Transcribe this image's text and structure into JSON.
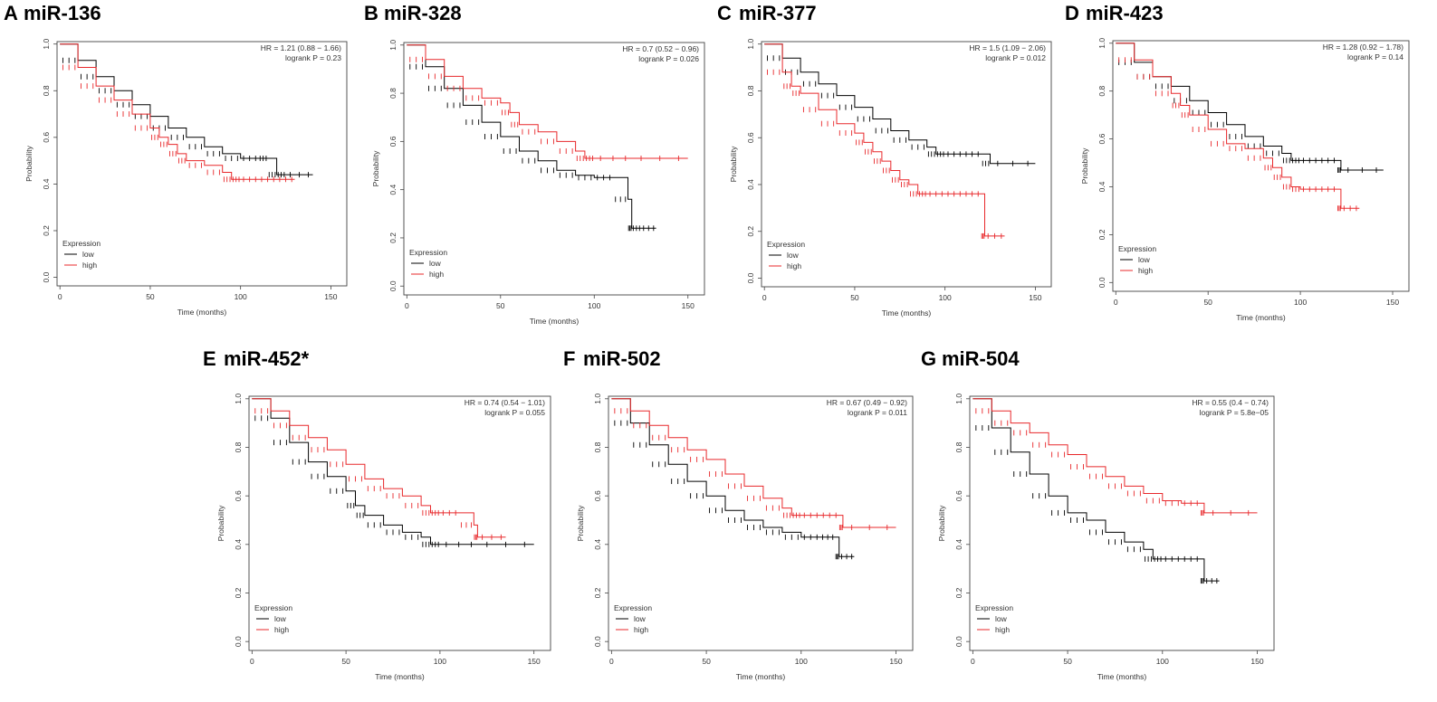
{
  "figure": {
    "chart_data": [
      {
        "type": "line",
        "panel_letter": "A",
        "title": "miR-136",
        "xlabel": "Time (months)",
        "ylabel": "Probability",
        "xlim": [
          0,
          150
        ],
        "ylim": [
          0,
          1
        ],
        "x_ticks": [
          "0",
          "50",
          "100",
          "150"
        ],
        "y_ticks": [
          "0.0",
          "0.2",
          "0.4",
          "0.6",
          "0.8",
          "1.0"
        ],
        "hr_text": "HR = 1.21 (0.88 − 1.66)",
        "logrank_text": "logrank P = 0.23",
        "legend_title": "Expression",
        "legend": [
          "low",
          "high"
        ],
        "series": [
          {
            "name": "low",
            "color": "#000000",
            "x": [
              0,
              10,
              20,
              30,
              40,
              50,
              60,
              70,
              80,
              90,
              100,
              110,
              115,
              120,
              125,
              140
            ],
            "y": [
              1.0,
              0.93,
              0.86,
              0.8,
              0.74,
              0.69,
              0.64,
              0.6,
              0.56,
              0.53,
              0.51,
              0.51,
              0.51,
              0.44,
              0.44,
              0.44
            ]
          },
          {
            "name": "high",
            "color": "#e8282b",
            "x": [
              0,
              10,
              20,
              30,
              40,
              50,
              55,
              60,
              65,
              70,
              80,
              90,
              95,
              100,
              110,
              120,
              130
            ],
            "y": [
              1.0,
              0.9,
              0.82,
              0.76,
              0.7,
              0.64,
              0.6,
              0.57,
              0.53,
              0.5,
              0.48,
              0.45,
              0.42,
              0.42,
              0.42,
              0.42,
              0.42
            ]
          }
        ]
      },
      {
        "type": "line",
        "panel_letter": "B",
        "title": "miR-328",
        "xlabel": "Time (months)",
        "ylabel": "Probability",
        "xlim": [
          0,
          150
        ],
        "ylim": [
          0,
          1
        ],
        "x_ticks": [
          "0",
          "50",
          "100",
          "150"
        ],
        "y_ticks": [
          "0.0",
          "0.2",
          "0.4",
          "0.6",
          "0.8",
          "1.0"
        ],
        "hr_text": "HR = 0.7 (0.52 − 0.96)",
        "logrank_text": "logrank P = 0.026",
        "legend_title": "Expression",
        "legend": [
          "low",
          "high"
        ],
        "series": [
          {
            "name": "low",
            "color": "#000000",
            "x": [
              0,
              10,
              20,
              30,
              40,
              50,
              60,
              70,
              80,
              90,
              100,
              110,
              118,
              120,
              125,
              133
            ],
            "y": [
              1.0,
              0.91,
              0.82,
              0.75,
              0.68,
              0.62,
              0.56,
              0.52,
              0.48,
              0.46,
              0.45,
              0.45,
              0.36,
              0.24,
              0.24,
              0.24
            ]
          },
          {
            "name": "high",
            "color": "#e8282b",
            "x": [
              0,
              10,
              20,
              30,
              40,
              50,
              55,
              60,
              70,
              80,
              90,
              95,
              100,
              120,
              150
            ],
            "y": [
              1.0,
              0.94,
              0.87,
              0.82,
              0.78,
              0.76,
              0.72,
              0.67,
              0.64,
              0.6,
              0.56,
              0.53,
              0.53,
              0.53,
              0.53
            ]
          }
        ]
      },
      {
        "type": "line",
        "panel_letter": "C",
        "title": "miR-377",
        "xlabel": "Time (months)",
        "ylabel": "Probability",
        "xlim": [
          0,
          150
        ],
        "ylim": [
          0,
          1
        ],
        "x_ticks": [
          "0",
          "50",
          "100",
          "150"
        ],
        "y_ticks": [
          "0.0",
          "0.2",
          "0.4",
          "0.6",
          "0.8",
          "1.0"
        ],
        "hr_text": "HR = 1.5 (1.09 − 2.06)",
        "logrank_text": "logrank P = 0.012",
        "legend_title": "Expression",
        "legend": [
          "low",
          "high"
        ],
        "series": [
          {
            "name": "low",
            "color": "#000000",
            "x": [
              0,
              10,
              20,
              30,
              40,
              50,
              60,
              70,
              80,
              90,
              95,
              100,
              110,
              120,
              125,
              150
            ],
            "y": [
              1.0,
              0.94,
              0.88,
              0.83,
              0.78,
              0.73,
              0.68,
              0.63,
              0.59,
              0.56,
              0.53,
              0.53,
              0.53,
              0.53,
              0.49,
              0.49
            ]
          },
          {
            "name": "high",
            "color": "#e8282b",
            "x": [
              0,
              10,
              15,
              20,
              30,
              40,
              50,
              55,
              60,
              65,
              70,
              75,
              80,
              85,
              90,
              100,
              110,
              120,
              122,
              133
            ],
            "y": [
              1.0,
              0.88,
              0.82,
              0.79,
              0.72,
              0.66,
              0.62,
              0.58,
              0.54,
              0.5,
              0.46,
              0.42,
              0.4,
              0.36,
              0.36,
              0.36,
              0.36,
              0.36,
              0.18,
              0.18
            ]
          }
        ]
      },
      {
        "type": "line",
        "panel_letter": "D",
        "title": "miR-423",
        "xlabel": "Time (months)",
        "ylabel": "Probability",
        "xlim": [
          0,
          150
        ],
        "ylim": [
          0,
          1
        ],
        "x_ticks": [
          "0",
          "50",
          "100",
          "150"
        ],
        "y_ticks": [
          "0.0",
          "0.2",
          "0.4",
          "0.6",
          "0.8",
          "1.0"
        ],
        "hr_text": "HR = 1.28 (0.92 − 1.78)",
        "logrank_text": "logrank P = 0.14",
        "legend_title": "Expression",
        "legend": [
          "low",
          "high"
        ],
        "series": [
          {
            "name": "low",
            "color": "#000000",
            "x": [
              0,
              10,
              20,
              30,
              40,
              50,
              60,
              70,
              80,
              90,
              95,
              100,
              110,
              120,
              122,
              145
            ],
            "y": [
              1.0,
              0.92,
              0.86,
              0.82,
              0.76,
              0.71,
              0.66,
              0.61,
              0.57,
              0.54,
              0.51,
              0.51,
              0.51,
              0.51,
              0.47,
              0.47
            ]
          },
          {
            "name": "high",
            "color": "#e8282b",
            "x": [
              0,
              10,
              20,
              30,
              35,
              40,
              50,
              60,
              70,
              80,
              85,
              90,
              95,
              100,
              110,
              120,
              122,
              132
            ],
            "y": [
              1.0,
              0.93,
              0.86,
              0.79,
              0.74,
              0.7,
              0.64,
              0.58,
              0.56,
              0.52,
              0.48,
              0.44,
              0.4,
              0.39,
              0.39,
              0.39,
              0.31,
              0.31
            ]
          }
        ]
      },
      {
        "type": "line",
        "panel_letter": "E",
        "title": "miR-452*",
        "xlabel": "Time (months)",
        "ylabel": "Probability",
        "xlim": [
          0,
          150
        ],
        "ylim": [
          0,
          1
        ],
        "x_ticks": [
          "0",
          "50",
          "100",
          "150"
        ],
        "y_ticks": [
          "0.0",
          "0.2",
          "0.4",
          "0.6",
          "0.8",
          "1.0"
        ],
        "hr_text": "HR = 0.74 (0.54 − 1.01)",
        "logrank_text": "logrank P = 0.055",
        "legend_title": "Expression",
        "legend": [
          "low",
          "high"
        ],
        "series": [
          {
            "name": "low",
            "color": "#000000",
            "x": [
              0,
              10,
              20,
              30,
              40,
              50,
              55,
              60,
              70,
              80,
              90,
              95,
              100,
              120,
              150
            ],
            "y": [
              1.0,
              0.92,
              0.82,
              0.74,
              0.68,
              0.62,
              0.56,
              0.52,
              0.48,
              0.45,
              0.43,
              0.4,
              0.4,
              0.4,
              0.4
            ]
          },
          {
            "name": "high",
            "color": "#e8282b",
            "x": [
              0,
              10,
              20,
              30,
              40,
              50,
              60,
              70,
              80,
              90,
              95,
              100,
              110,
              118,
              120,
              135
            ],
            "y": [
              1.0,
              0.95,
              0.89,
              0.84,
              0.79,
              0.73,
              0.67,
              0.63,
              0.6,
              0.56,
              0.53,
              0.53,
              0.53,
              0.48,
              0.43,
              0.43
            ]
          }
        ]
      },
      {
        "type": "line",
        "panel_letter": "F",
        "title": "miR-502",
        "xlabel": "Time (months)",
        "ylabel": "Probability",
        "xlim": [
          0,
          150
        ],
        "ylim": [
          0,
          1
        ],
        "x_ticks": [
          "0",
          "50",
          "100",
          "150"
        ],
        "y_ticks": [
          "0.0",
          "0.2",
          "0.4",
          "0.6",
          "0.8",
          "1.0"
        ],
        "hr_text": "HR = 0.67 (0.49 − 0.92)",
        "logrank_text": "logrank P = 0.011",
        "legend_title": "Expression",
        "legend": [
          "low",
          "high"
        ],
        "series": [
          {
            "name": "low",
            "color": "#000000",
            "x": [
              0,
              10,
              20,
              30,
              40,
              50,
              60,
              70,
              80,
              90,
              100,
              110,
              118,
              120,
              128
            ],
            "y": [
              1.0,
              0.9,
              0.81,
              0.73,
              0.66,
              0.6,
              0.54,
              0.5,
              0.47,
              0.45,
              0.43,
              0.43,
              0.43,
              0.35,
              0.35
            ]
          },
          {
            "name": "high",
            "color": "#e8282b",
            "x": [
              0,
              10,
              20,
              30,
              40,
              50,
              60,
              70,
              80,
              90,
              95,
              100,
              110,
              120,
              122,
              150
            ],
            "y": [
              1.0,
              0.95,
              0.89,
              0.84,
              0.79,
              0.75,
              0.69,
              0.64,
              0.59,
              0.55,
              0.52,
              0.52,
              0.52,
              0.52,
              0.47,
              0.47
            ]
          }
        ]
      },
      {
        "type": "line",
        "panel_letter": "G",
        "title": "miR-504",
        "xlabel": "Time (months)",
        "ylabel": "Probability",
        "xlim": [
          0,
          150
        ],
        "ylim": [
          0,
          1
        ],
        "x_ticks": [
          "0",
          "50",
          "100",
          "150"
        ],
        "y_ticks": [
          "0.0",
          "0.2",
          "0.4",
          "0.6",
          "0.8",
          "1.0"
        ],
        "hr_text": "HR = 0.55 (0.4 − 0.74)",
        "logrank_text": "logrank P = 5.8e−05",
        "legend_title": "Expression",
        "legend": [
          "low",
          "high"
        ],
        "series": [
          {
            "name": "low",
            "color": "#000000",
            "x": [
              0,
              10,
              20,
              30,
              40,
              50,
              60,
              70,
              80,
              90,
              95,
              100,
              110,
              120,
              122,
              130
            ],
            "y": [
              1.0,
              0.88,
              0.78,
              0.69,
              0.6,
              0.53,
              0.5,
              0.45,
              0.41,
              0.38,
              0.34,
              0.34,
              0.34,
              0.34,
              0.25,
              0.25
            ]
          },
          {
            "name": "high",
            "color": "#e8282b",
            "x": [
              0,
              10,
              20,
              30,
              40,
              50,
              60,
              70,
              80,
              90,
              100,
              110,
              120,
              122,
              150
            ],
            "y": [
              1.0,
              0.95,
              0.9,
              0.86,
              0.81,
              0.77,
              0.72,
              0.68,
              0.64,
              0.61,
              0.58,
              0.57,
              0.57,
              0.53,
              0.53
            ]
          }
        ]
      }
    ]
  }
}
